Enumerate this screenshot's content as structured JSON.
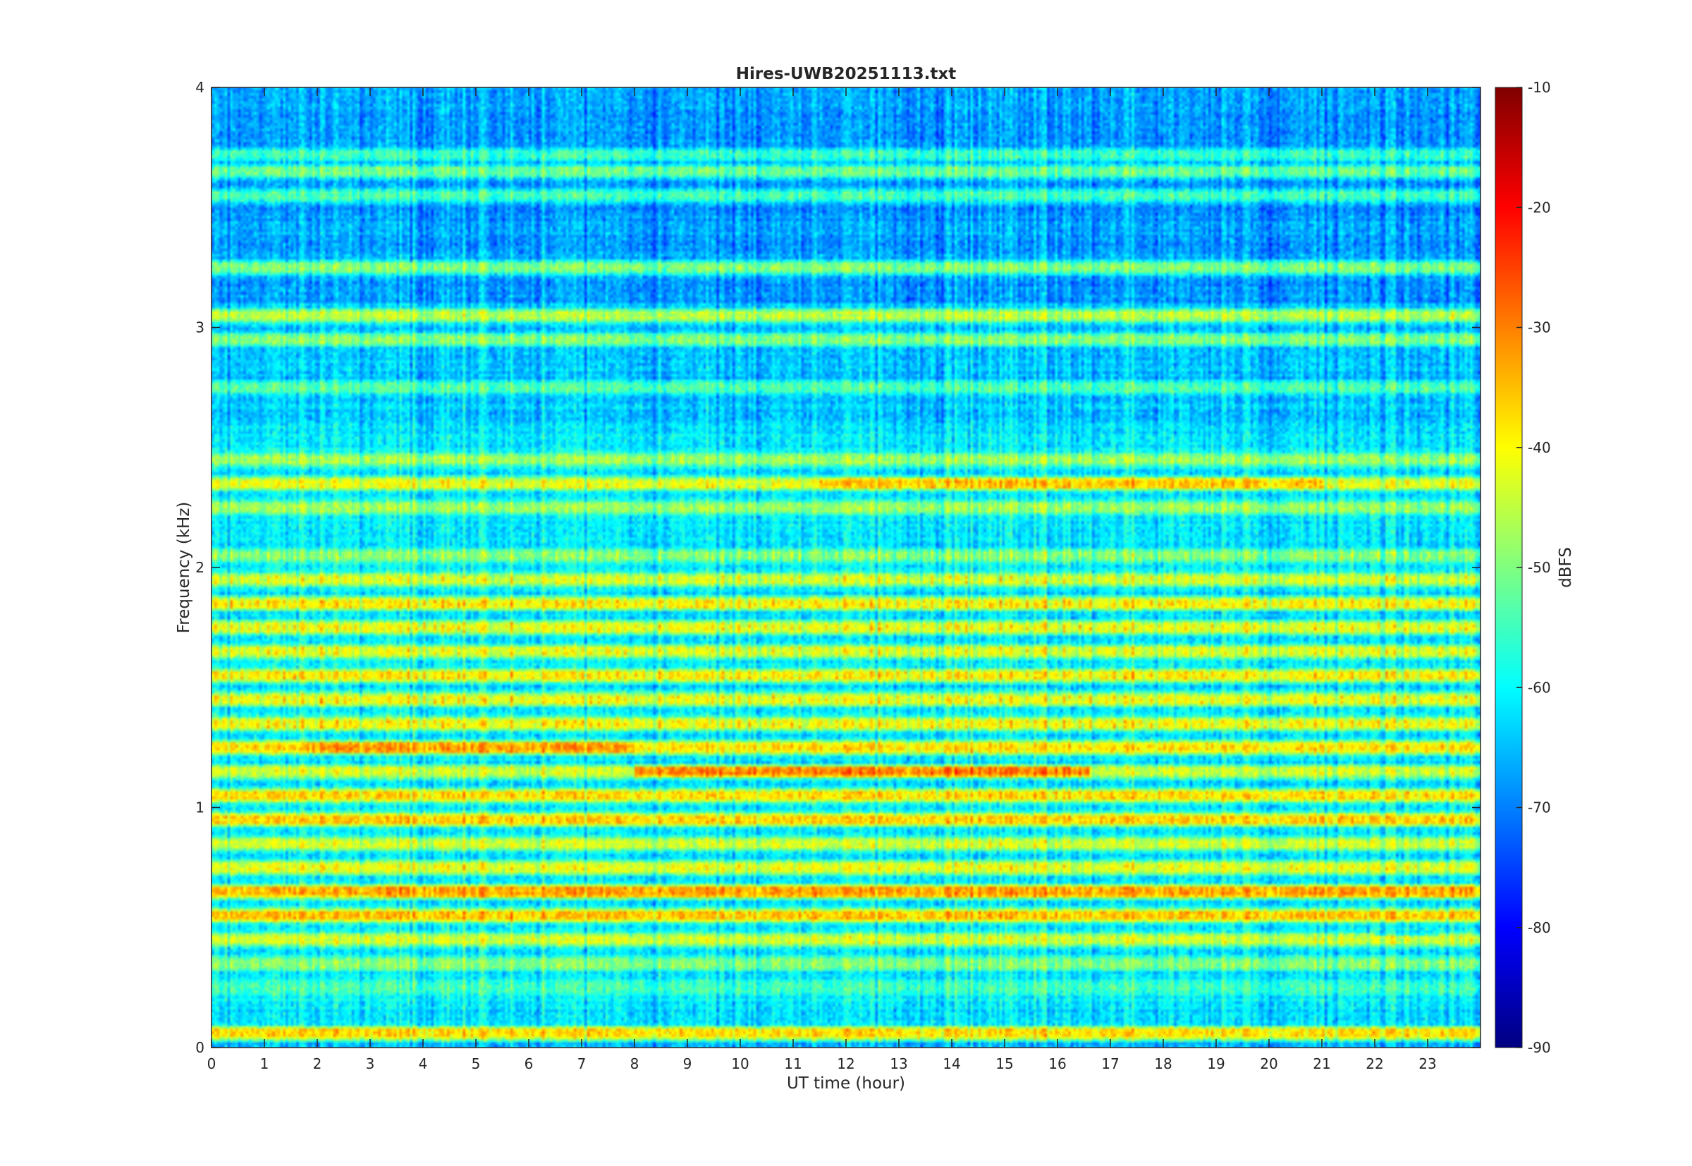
{
  "chart_data": {
    "type": "heatmap",
    "title": "Hires-UWB20251113.txt",
    "xlabel": "UT time (hour)",
    "ylabel": "Frequency (kHz)",
    "xlim": [
      0,
      24
    ],
    "ylim": [
      0,
      4
    ],
    "x_ticks": [
      "0",
      "1",
      "2",
      "3",
      "4",
      "5",
      "6",
      "7",
      "8",
      "9",
      "10",
      "11",
      "12",
      "13",
      "14",
      "15",
      "16",
      "17",
      "18",
      "19",
      "20",
      "21",
      "22",
      "23"
    ],
    "y_ticks": [
      "0",
      "1",
      "2",
      "3",
      "4"
    ],
    "colorbar": {
      "label": "dBFS",
      "range": [
        -90,
        -10
      ],
      "ticks": [
        "-10",
        "-20",
        "-30",
        "-40",
        "-50",
        "-60",
        "-70",
        "-80",
        "-90"
      ],
      "colormap": "jet"
    },
    "background_level_dBFS": -62,
    "frequency_bands": [
      {
        "freq_khz": 3.88,
        "level_dBFS": -70
      },
      {
        "freq_khz": 3.72,
        "level_dBFS": -56
      },
      {
        "freq_khz": 3.65,
        "level_dBFS": -52
      },
      {
        "freq_khz": 3.55,
        "level_dBFS": -55
      },
      {
        "freq_khz": 3.25,
        "level_dBFS": -50
      },
      {
        "freq_khz": 3.05,
        "level_dBFS": -46
      },
      {
        "freq_khz": 2.95,
        "level_dBFS": -50
      },
      {
        "freq_khz": 2.75,
        "level_dBFS": -54
      },
      {
        "freq_khz": 2.45,
        "level_dBFS": -48
      },
      {
        "freq_khz": 2.35,
        "level_dBFS": -42
      },
      {
        "freq_khz": 2.25,
        "level_dBFS": -48
      },
      {
        "freq_khz": 2.05,
        "level_dBFS": -50
      },
      {
        "freq_khz": 1.95,
        "level_dBFS": -44
      },
      {
        "freq_khz": 1.85,
        "level_dBFS": -40
      },
      {
        "freq_khz": 1.75,
        "level_dBFS": -42
      },
      {
        "freq_khz": 1.65,
        "level_dBFS": -43
      },
      {
        "freq_khz": 1.55,
        "level_dBFS": -40
      },
      {
        "freq_khz": 1.45,
        "level_dBFS": -42
      },
      {
        "freq_khz": 1.35,
        "level_dBFS": -41
      },
      {
        "freq_khz": 1.25,
        "level_dBFS": -38
      },
      {
        "freq_khz": 1.15,
        "level_dBFS": -44
      },
      {
        "freq_khz": 1.05,
        "level_dBFS": -38
      },
      {
        "freq_khz": 0.95,
        "level_dBFS": -37
      },
      {
        "freq_khz": 0.85,
        "level_dBFS": -44
      },
      {
        "freq_khz": 0.75,
        "level_dBFS": -42
      },
      {
        "freq_khz": 0.65,
        "level_dBFS": -35
      },
      {
        "freq_khz": 0.55,
        "level_dBFS": -36
      },
      {
        "freq_khz": 0.45,
        "level_dBFS": -44
      },
      {
        "freq_khz": 0.35,
        "level_dBFS": -50
      },
      {
        "freq_khz": 0.25,
        "level_dBFS": -55
      },
      {
        "freq_khz": 0.06,
        "level_dBFS": -38
      }
    ],
    "features": [
      {
        "freq_khz": 1.15,
        "start_hour": 8.0,
        "end_hour": 16.6,
        "level_dBFS": -30
      },
      {
        "freq_khz": 1.25,
        "start_hour": 1.8,
        "end_hour": 8.0,
        "level_dBFS": -33
      },
      {
        "freq_khz": 2.35,
        "start_hour": 11.5,
        "end_hour": 21.0,
        "level_dBFS": -36
      },
      {
        "freq_khz": 0.65,
        "start_hour": 3.0,
        "end_hour": 23.9,
        "level_dBFS": -33
      },
      {
        "freq_khz": 0.49,
        "start_hour": 22.0,
        "end_hour": 23.2,
        "level_dBFS": -60
      }
    ]
  }
}
